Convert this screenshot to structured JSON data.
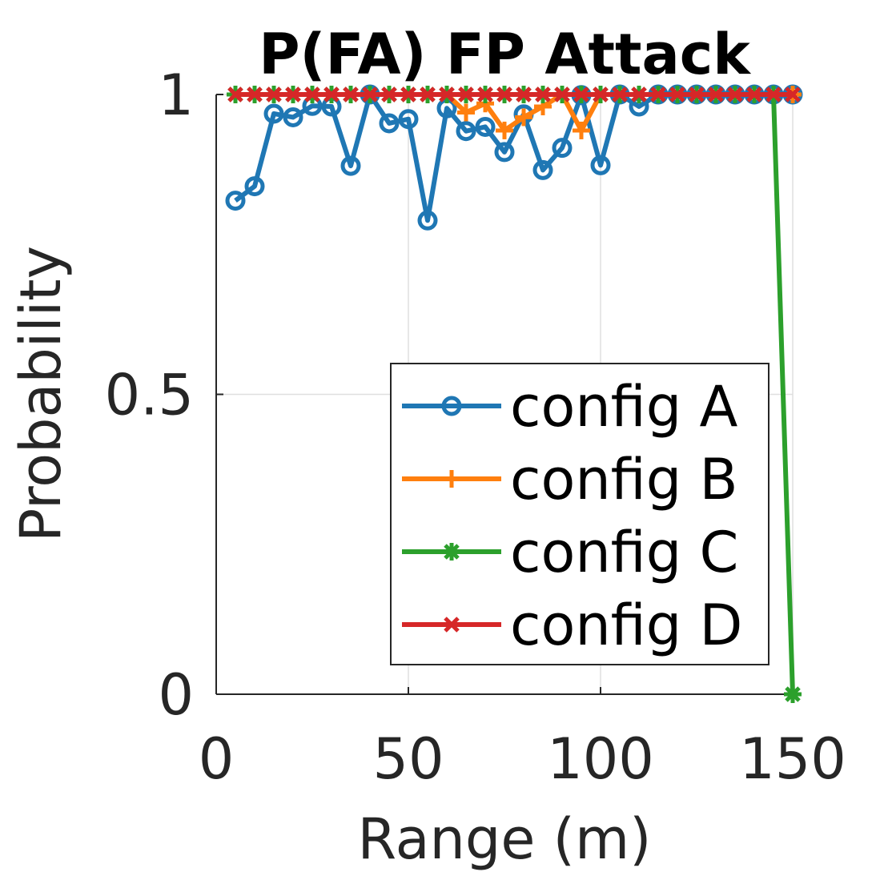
{
  "chart_data": {
    "type": "line",
    "title": "P(FA) FP Attack",
    "xlabel": "Range (m)",
    "ylabel": "Probability",
    "xlim": [
      0,
      150
    ],
    "ylim": [
      0,
      1
    ],
    "xticks": [
      0,
      50,
      100,
      150
    ],
    "yticks": [
      0,
      0.5,
      1
    ],
    "xtick_labels": [
      "0",
      "50",
      "100",
      "150"
    ],
    "ytick_labels": [
      "0",
      "0.5",
      "1"
    ],
    "grid": true,
    "legend_position": "bottom-right",
    "x": [
      5,
      10,
      15,
      20,
      25,
      30,
      35,
      40,
      45,
      50,
      55,
      60,
      65,
      70,
      75,
      80,
      85,
      90,
      95,
      100,
      105,
      110,
      115,
      120,
      125,
      130,
      135,
      140,
      145,
      150
    ],
    "series": [
      {
        "name": "config A",
        "color": "#1f77b4",
        "marker": "circle",
        "values": [
          0.823,
          0.847,
          0.968,
          0.962,
          0.981,
          0.98,
          0.881,
          1.0,
          0.952,
          0.959,
          0.79,
          0.977,
          0.939,
          0.946,
          0.904,
          0.967,
          0.874,
          0.911,
          0.999,
          0.882,
          1.0,
          0.98,
          1.0,
          1.0,
          1.0,
          1.0,
          1.0,
          1.0,
          1.0,
          1.0
        ]
      },
      {
        "name": "config B",
        "color": "#ff7f0e",
        "marker": "plus",
        "values": [
          1.0,
          1.0,
          1.0,
          1.0,
          1.0,
          1.0,
          1.0,
          1.0,
          1.0,
          1.0,
          1.0,
          1.0,
          0.97,
          0.985,
          0.94,
          0.962,
          0.98,
          1.0,
          0.94,
          1.0,
          1.0,
          1.0,
          1.0,
          1.0,
          1.0,
          1.0,
          1.0,
          1.0,
          1.0,
          1.0
        ]
      },
      {
        "name": "config C",
        "color": "#2ca02c",
        "marker": "asterisk",
        "values": [
          1.0,
          1.0,
          1.0,
          1.0,
          1.0,
          1.0,
          1.0,
          1.0,
          1.0,
          1.0,
          1.0,
          1.0,
          1.0,
          1.0,
          1.0,
          1.0,
          1.0,
          1.0,
          1.0,
          1.0,
          1.0,
          1.0,
          1.0,
          1.0,
          1.0,
          1.0,
          1.0,
          1.0,
          1.0,
          0.0
        ]
      },
      {
        "name": "config D",
        "color": "#d62728",
        "marker": "x",
        "values": [
          1.0,
          1.0,
          1.0,
          1.0,
          1.0,
          1.0,
          1.0,
          1.0,
          1.0,
          1.0,
          1.0,
          1.0,
          1.0,
          1.0,
          1.0,
          1.0,
          1.0,
          1.0,
          1.0,
          1.0,
          1.0,
          1.0,
          1.0,
          1.0,
          1.0,
          1.0,
          1.0,
          1.0,
          1.0,
          1.0
        ]
      }
    ]
  }
}
